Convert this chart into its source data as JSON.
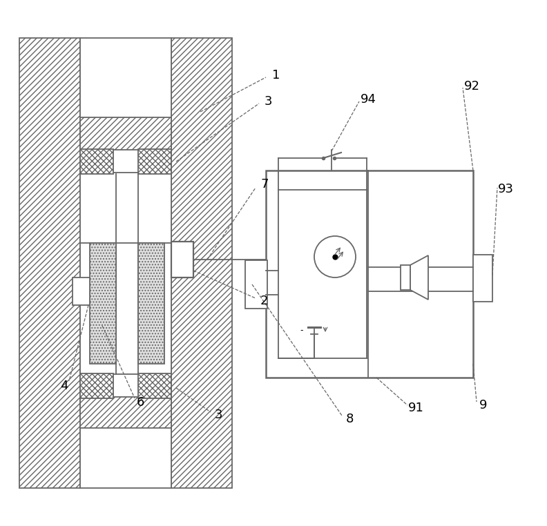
{
  "bg_color": "#ffffff",
  "lc": "#666666",
  "lw": 1.3,
  "fig_width": 7.92,
  "fig_height": 7.62,
  "dpi": 100,
  "ann_color": "#666666",
  "ann_lw": 0.9
}
